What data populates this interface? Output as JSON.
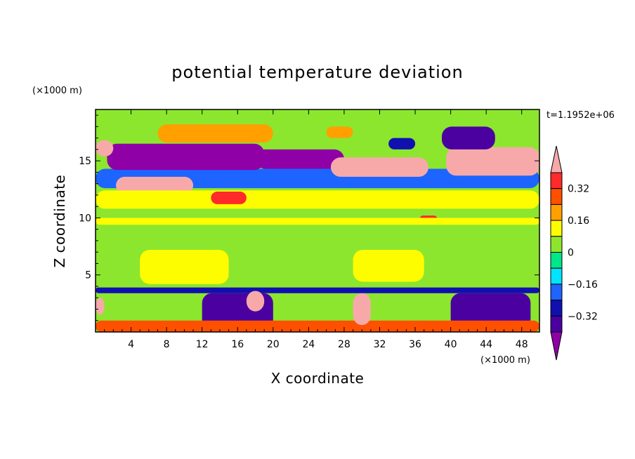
{
  "chart_data": {
    "type": "heatmap",
    "title": "potential temperature deviation",
    "xlabel": "X coordinate",
    "ylabel": "Z coordinate",
    "x_unit": "(×1000 m)",
    "y_unit": "(×1000 m)",
    "time_label": "t=1.1952e+06",
    "xlim": [
      0,
      50
    ],
    "ylim": [
      0,
      19.5
    ],
    "x_ticks": [
      4,
      8,
      12,
      16,
      20,
      24,
      28,
      32,
      36,
      40,
      44,
      48
    ],
    "y_ticks": [
      5,
      10,
      15
    ],
    "colorbar": {
      "levels": [
        -0.4,
        -0.32,
        -0.24,
        -0.16,
        -0.08,
        0,
        0.08,
        0.16,
        0.24,
        0.32,
        0.4
      ],
      "tick_labels": [
        "0.32",
        "0.16",
        "0",
        "−0.16",
        "−0.32"
      ],
      "tick_values": [
        0.32,
        0.16,
        0,
        -0.16,
        -0.32
      ],
      "colors_low_to_high": [
        "#8f00a6",
        "#4b00a0",
        "#1010b0",
        "#1e64ff",
        "#00e4ff",
        "#00e68a",
        "#8ce62e",
        "#fdfd00",
        "#ffa000",
        "#ff5000",
        "#ff2a2a",
        "#f7a9a9"
      ],
      "extend": "both"
    },
    "regions": [
      {
        "x": [
          0,
          50
        ],
        "y": [
          0,
          19.5
        ],
        "value": 0.04
      },
      {
        "x": [
          0,
          50
        ],
        "y": [
          12.6,
          14.3
        ],
        "value": -0.2
      },
      {
        "x": [
          1.3,
          19
        ],
        "y": [
          14.2,
          16.5
        ],
        "value": -0.45
      },
      {
        "x": [
          18,
          28
        ],
        "y": [
          14.3,
          16.0
        ],
        "value": -0.45
      },
      {
        "x": [
          0,
          2
        ],
        "y": [
          15.4,
          16.8
        ],
        "value": 0.45
      },
      {
        "x": [
          2.3,
          11
        ],
        "y": [
          12.1,
          13.6
        ],
        "value": 0.45
      },
      {
        "x": [
          26.5,
          37.5
        ],
        "y": [
          13.6,
          15.3
        ],
        "value": 0.45
      },
      {
        "x": [
          39.5,
          50
        ],
        "y": [
          13.7,
          16.2
        ],
        "value": 0.45
      },
      {
        "x": [
          39,
          45
        ],
        "y": [
          16.0,
          18.0
        ],
        "value": -0.4
      },
      {
        "x": [
          33,
          36
        ],
        "y": [
          16.0,
          17.0
        ],
        "value": -0.3
      },
      {
        "x": [
          7,
          20
        ],
        "y": [
          16.6,
          18.2
        ],
        "value": 0.2
      },
      {
        "x": [
          26,
          29
        ],
        "y": [
          17.0,
          18.0
        ],
        "value": 0.16
      },
      {
        "x": [
          0,
          50
        ],
        "y": [
          3.4,
          3.9
        ],
        "value": -0.3
      },
      {
        "x": [
          12,
          20
        ],
        "y": [
          0.2,
          3.4
        ],
        "value": -0.4
      },
      {
        "x": [
          40,
          49
        ],
        "y": [
          0.3,
          3.4
        ],
        "value": -0.4
      },
      {
        "x": [
          0,
          50
        ],
        "y": [
          0,
          1.0
        ],
        "value": 0.24
      },
      {
        "x": [
          29,
          31
        ],
        "y": [
          0.6,
          3.4
        ],
        "value": 0.45
      },
      {
        "x": [
          17,
          19
        ],
        "y": [
          1.8,
          3.6
        ],
        "value": 0.45
      },
      {
        "x": [
          0,
          1
        ],
        "y": [
          1.5,
          3.0
        ],
        "value": 0.45
      },
      {
        "x": [
          0,
          50
        ],
        "y": [
          10.8,
          12.4
        ],
        "value": 0.1
      },
      {
        "x": [
          13,
          17
        ],
        "y": [
          11.2,
          12.3
        ],
        "value": 0.32
      },
      {
        "x": [
          36.5,
          38.5
        ],
        "y": [
          9.6,
          10.2
        ],
        "value": 0.32
      },
      {
        "x": [
          0,
          50
        ],
        "y": [
          9.4,
          10.0
        ],
        "value": 0.08
      },
      {
        "x": [
          5,
          15
        ],
        "y": [
          4.2,
          7.2
        ],
        "value": 0.08
      },
      {
        "x": [
          29,
          37
        ],
        "y": [
          4.4,
          7.2
        ],
        "value": 0.08
      }
    ]
  }
}
